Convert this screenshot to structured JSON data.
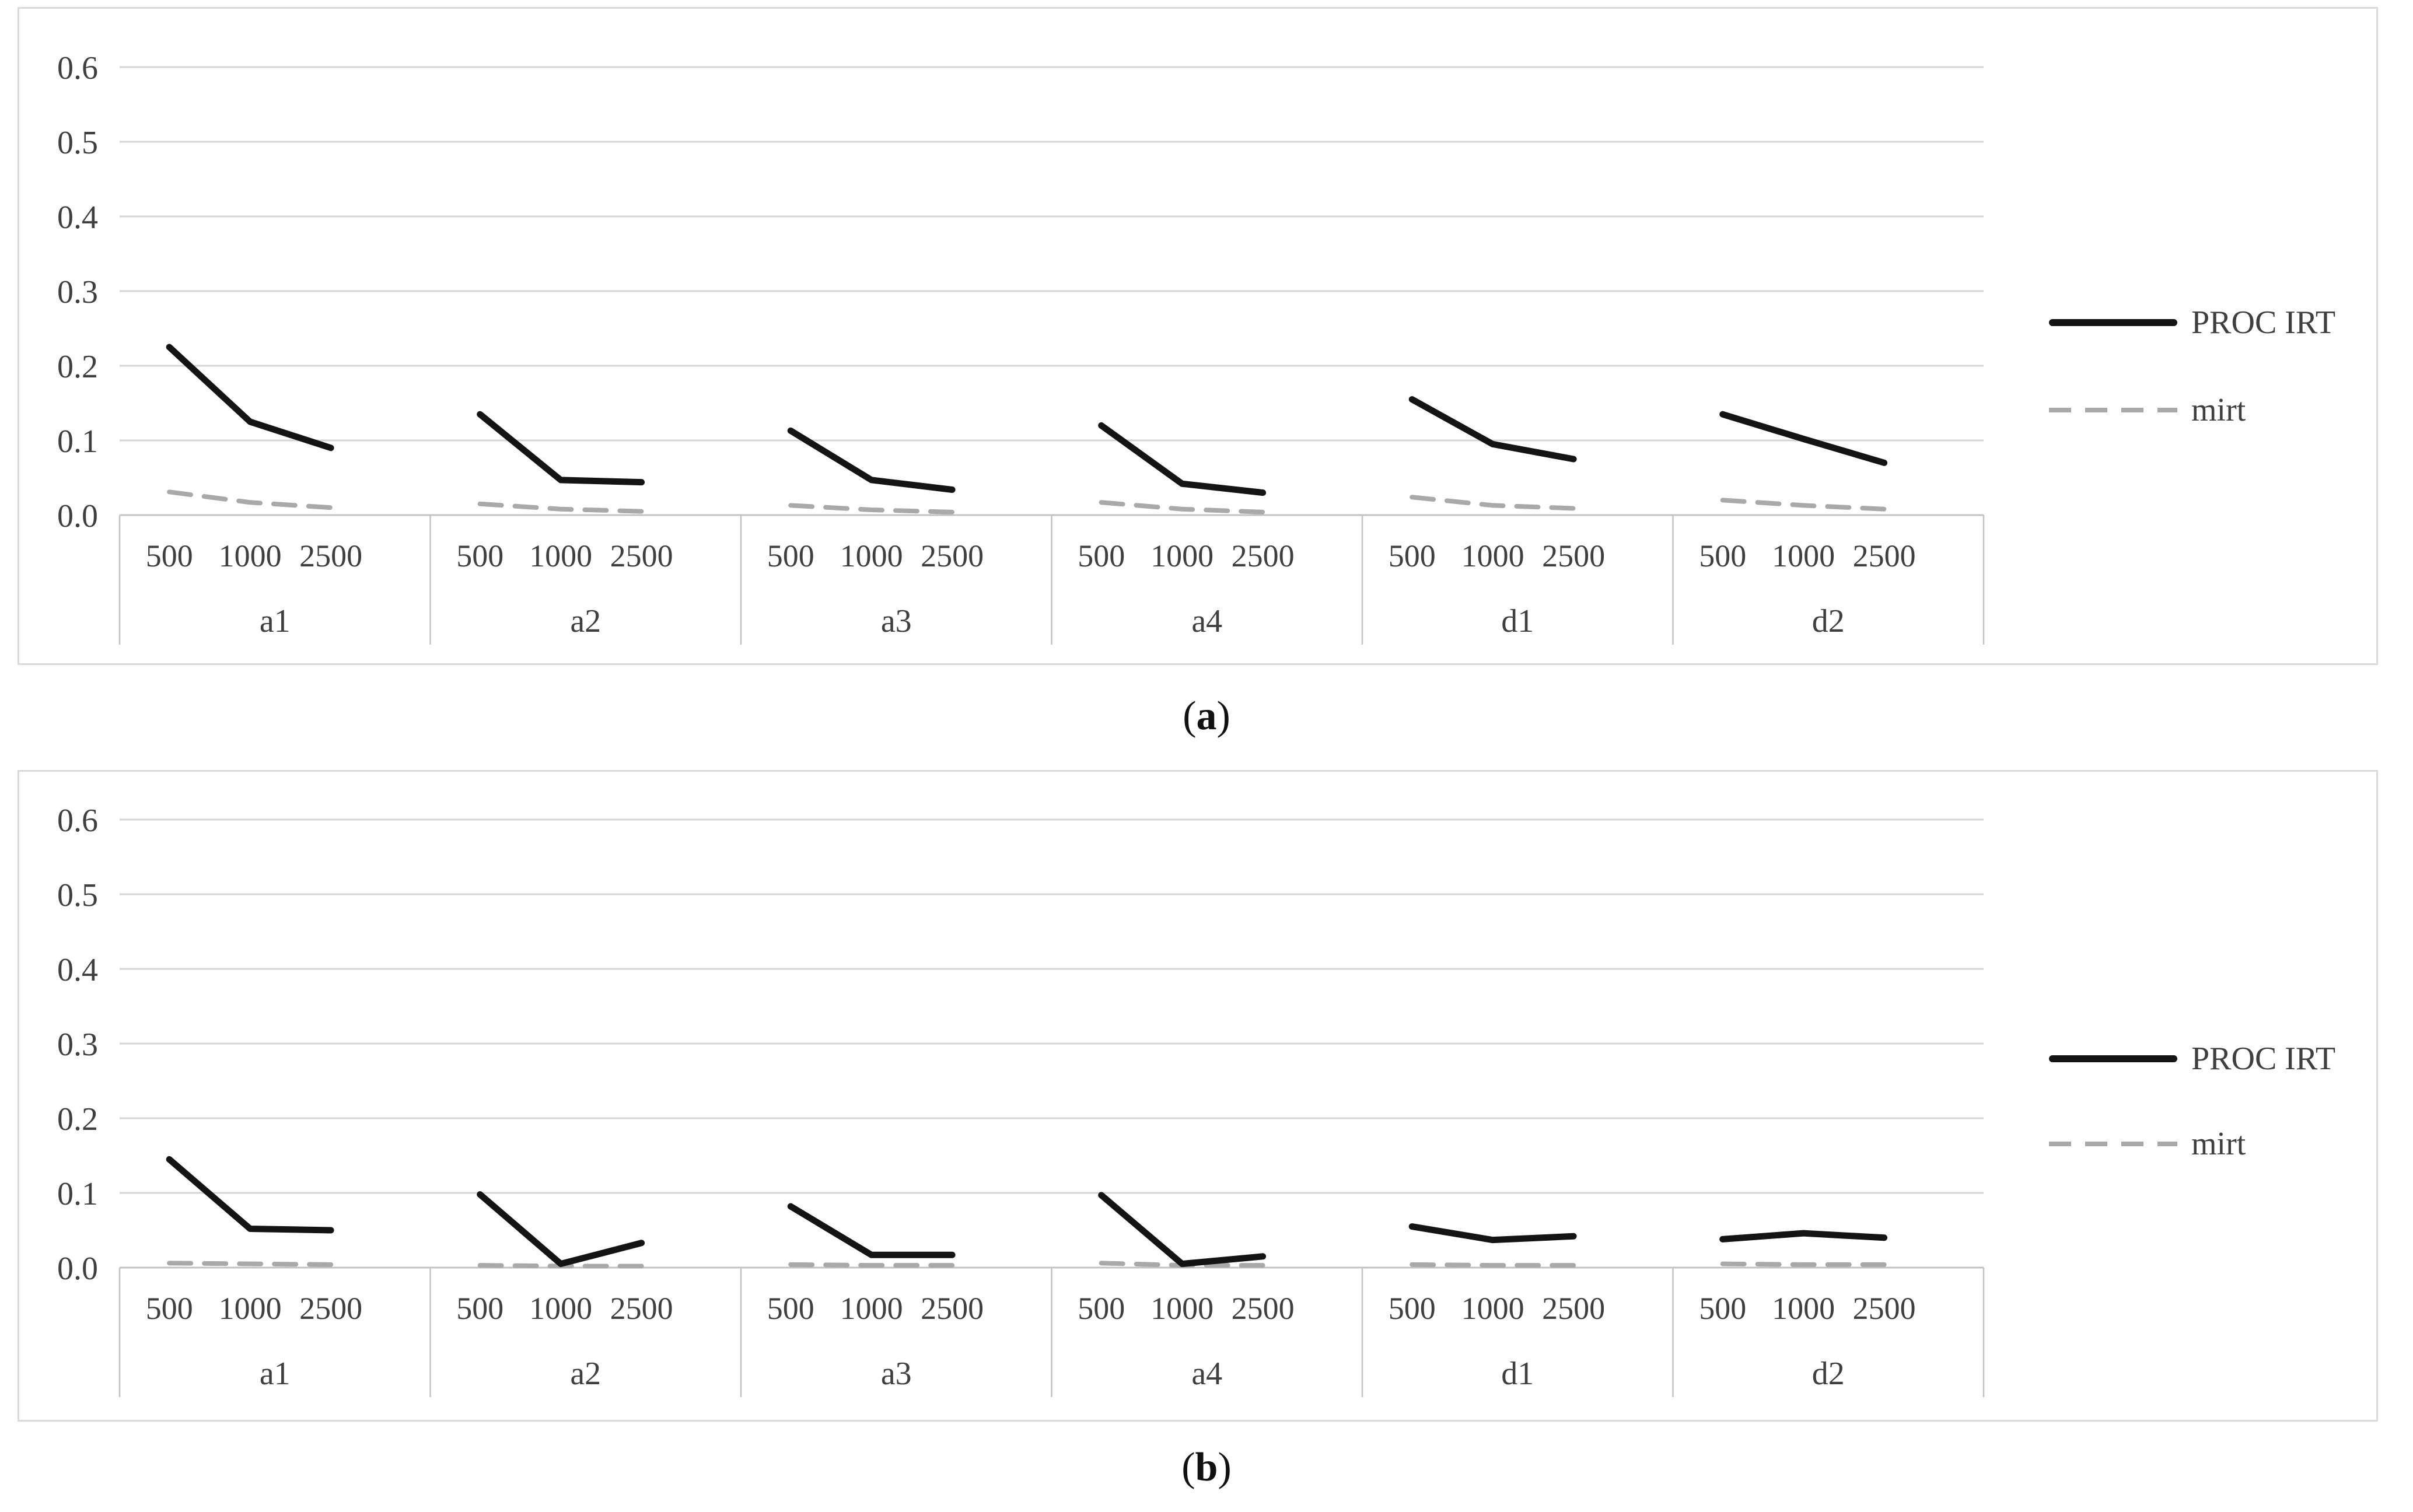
{
  "figure": {
    "captions": [
      {
        "open": "(",
        "letter": "a",
        "close": ")"
      },
      {
        "open": "(",
        "letter": "b",
        "close": ")"
      }
    ]
  },
  "colors": {
    "proc_irt": "#141414",
    "mirt": "#a9a9a9",
    "gridline": "#d4d4d4",
    "axis_line": "#c3c3c3",
    "text": "#3f3f3f",
    "panel_border": "#dadada"
  },
  "chart_data": [
    {
      "type": "line",
      "title": "",
      "xlabel": "",
      "ylabel": "",
      "categories": [
        "a1",
        "a2",
        "a3",
        "a4",
        "d1",
        "d2"
      ],
      "x_sub_labels": [
        "500",
        "1000",
        "2500"
      ],
      "ylim": [
        0,
        0.6
      ],
      "yticks": [
        0.0,
        0.1,
        0.2,
        0.3,
        0.4,
        0.5,
        0.6
      ],
      "grid": true,
      "legend_position": "right",
      "series": [
        {
          "name": "PROC IRT",
          "style": "solid",
          "color": "#141414",
          "values": [
            [
              0.225,
              0.125,
              0.09
            ],
            [
              0.135,
              0.047,
              0.044
            ],
            [
              0.113,
              0.047,
              0.034
            ],
            [
              0.12,
              0.042,
              0.03
            ],
            [
              0.155,
              0.095,
              0.075
            ],
            [
              0.135,
              0.102,
              0.07
            ]
          ]
        },
        {
          "name": "mirt",
          "style": "dashed",
          "color": "#a9a9a9",
          "values": [
            [
              0.031,
              0.017,
              0.01
            ],
            [
              0.015,
              0.008,
              0.005
            ],
            [
              0.013,
              0.007,
              0.004
            ],
            [
              0.017,
              0.008,
              0.004
            ],
            [
              0.024,
              0.013,
              0.009
            ],
            [
              0.02,
              0.013,
              0.008
            ]
          ]
        }
      ]
    },
    {
      "type": "line",
      "title": "",
      "xlabel": "",
      "ylabel": "",
      "categories": [
        "a1",
        "a2",
        "a3",
        "a4",
        "d1",
        "d2"
      ],
      "x_sub_labels": [
        "500",
        "1000",
        "2500"
      ],
      "ylim": [
        0,
        0.6
      ],
      "yticks": [
        0.0,
        0.1,
        0.2,
        0.3,
        0.4,
        0.5,
        0.6
      ],
      "grid": true,
      "legend_position": "right",
      "series": [
        {
          "name": "PROC IRT",
          "style": "solid",
          "color": "#141414",
          "values": [
            [
              0.145,
              0.052,
              0.05
            ],
            [
              0.098,
              0.005,
              0.033
            ],
            [
              0.082,
              0.017,
              0.017
            ],
            [
              0.097,
              0.005,
              0.015
            ],
            [
              0.055,
              0.037,
              0.042
            ],
            [
              0.038,
              0.046,
              0.04
            ]
          ]
        },
        {
          "name": "mirt",
          "style": "dashed",
          "color": "#a9a9a9",
          "values": [
            [
              0.006,
              0.005,
              0.004
            ],
            [
              0.003,
              0.002,
              0.002
            ],
            [
              0.004,
              0.003,
              0.003
            ],
            [
              0.006,
              0.003,
              0.003
            ],
            [
              0.004,
              0.003,
              0.003
            ],
            [
              0.005,
              0.004,
              0.004
            ]
          ]
        }
      ]
    }
  ]
}
